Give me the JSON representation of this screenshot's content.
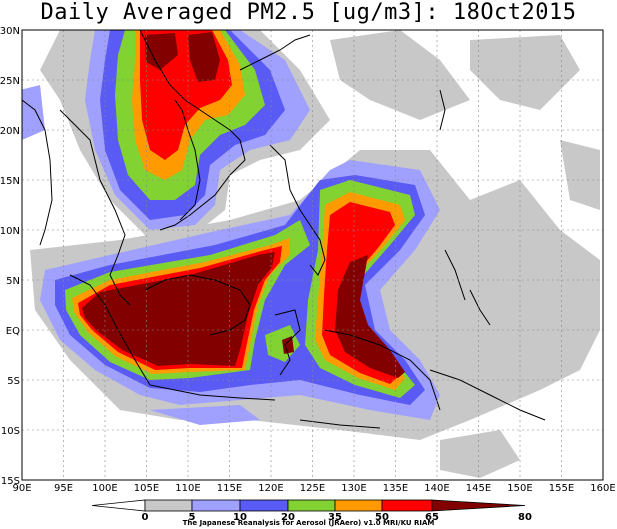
{
  "title": "Daily Averaged PM2.5 [ug/m3]: 18Oct2015",
  "footer": "The Japanese Reanalysis for Aerosol (JRAero) v1.0 MRI/KU RIAM",
  "map": {
    "lon_range": [
      90,
      160
    ],
    "lat_range": [
      -15,
      30
    ],
    "lon_ticks": [
      "90E",
      "95E",
      "100E",
      "105E",
      "110E",
      "115E",
      "120E",
      "125E",
      "130E",
      "135E",
      "140E",
      "145E",
      "150E",
      "155E",
      "160E"
    ],
    "lat_ticks": [
      "30N",
      "25N",
      "20N",
      "15N",
      "10N",
      "5N",
      "EQ",
      "5S",
      "10S",
      "15S"
    ]
  },
  "legend": {
    "breaks": [
      "0",
      "5",
      "10",
      "20",
      "35",
      "50",
      "65",
      "80"
    ],
    "colors": [
      "#ffffff",
      "#c8c8c8",
      "#a0a0ff",
      "#5a5af5",
      "#82d232",
      "#ff9b00",
      "#ff0000",
      "#820000"
    ]
  }
}
